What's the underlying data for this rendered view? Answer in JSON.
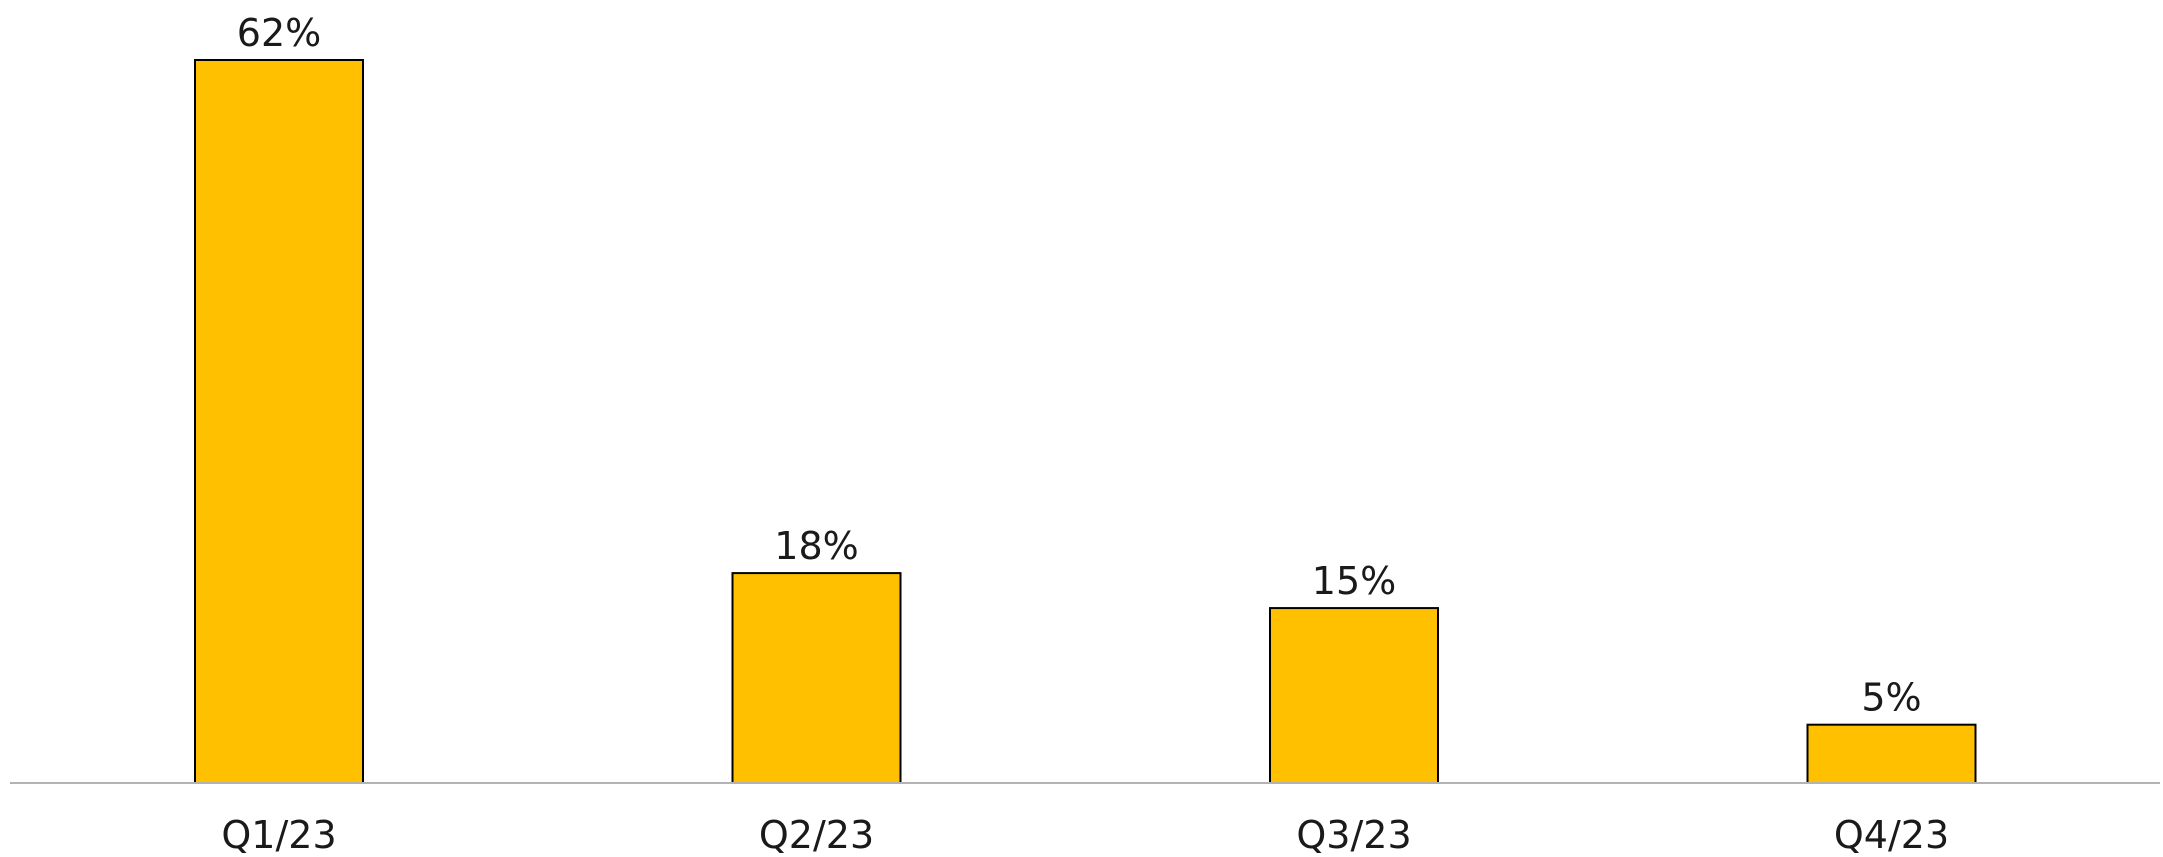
{
  "chart_data": {
    "type": "bar",
    "categories": [
      "Q1/23",
      "Q2/23",
      "Q3/23",
      "Q4/23"
    ],
    "values": [
      62,
      18,
      15,
      5
    ],
    "value_labels": [
      "62%",
      "18%",
      "15%",
      "5%"
    ],
    "title": "",
    "xlabel": "",
    "ylabel": "",
    "ylim": [
      0,
      62
    ],
    "grid": false,
    "legend": "none",
    "colors": {
      "bar": "#FFC000",
      "bar_edge": "#000000",
      "axis": "#B3B3B3",
      "text": "#1A1A1A"
    }
  }
}
